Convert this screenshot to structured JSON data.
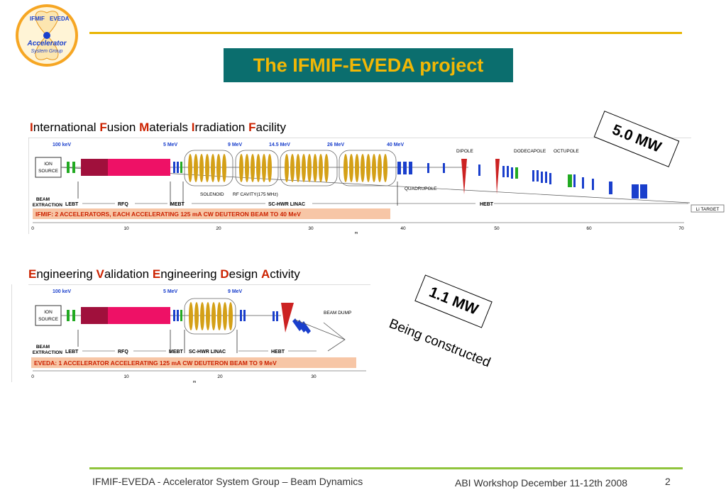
{
  "logo": {
    "left_text": "IFMIF",
    "right_text": "EVEDA",
    "main_text": "Accelerator",
    "sub_text": "System Group"
  },
  "title": "The IFMIF-EVEDA project",
  "ifmif": {
    "heading": [
      {
        "initial": "I",
        "rest": "nternational "
      },
      {
        "initial": "F",
        "rest": "usion "
      },
      {
        "initial": "M",
        "rest": "aterials "
      },
      {
        "initial": "I",
        "rest": "rradiation "
      },
      {
        "initial": "F",
        "rest": "acility"
      }
    ],
    "power": "5.0 MW",
    "energies": [
      "100 keV",
      "5 MeV",
      "9 MeV",
      "14.5 MeV",
      "26 MeV",
      "40 MeV"
    ],
    "source_line1": "ION",
    "source_line2": "SOURCE",
    "magnet_labels": [
      "DIPOLE",
      "DODECAPOLE",
      "OCTUPOLE",
      "QUADRUPOLE"
    ],
    "cavity_labels": [
      "SOLENOID",
      "RF CAVITY(175 MHz)"
    ],
    "target": "Li TARGET",
    "beam_extraction_1": "BEAM",
    "beam_extraction_2": "EXTRACTION",
    "sections": [
      "LEBT",
      "RFQ",
      "MEBT",
      "SC-HWR LINAC",
      "HEBT"
    ],
    "caption": "IFMIF: 2 ACCELERATORS, EACH ACCELERATING 125 mA CW DEUTERON BEAM TO 40 MeV",
    "axis_ticks": [
      "0",
      "10",
      "20",
      "30",
      "40",
      "50",
      "60",
      "70"
    ],
    "axis_unit": "m"
  },
  "eveda": {
    "heading": [
      {
        "initial": "E",
        "rest": "ngineering "
      },
      {
        "initial": "V",
        "rest": "alidation "
      },
      {
        "initial": "E",
        "rest": "ngineering "
      },
      {
        "initial": "D",
        "rest": "esign "
      },
      {
        "initial": "A",
        "rest": "ctivity"
      }
    ],
    "power": "1.1 MW",
    "status": "Being constructed",
    "energies": [
      "100 keV",
      "5 MeV",
      "9 MeV"
    ],
    "source_line1": "ION",
    "source_line2": "SOURCE",
    "beam_dump": "BEAM DUMP",
    "beam_extraction_1": "BEAM",
    "beam_extraction_2": "EXTRACTION",
    "sections": [
      "LEBT",
      "RFQ",
      "MEBT",
      "SC-HWR LINAC",
      "HEBT"
    ],
    "caption": "EVEDA: 1 ACCELERATOR ACCELERATING 125 mA CW DEUTERON BEAM TO 9 MeV",
    "axis_ticks": [
      "0",
      "10",
      "20",
      "30"
    ],
    "axis_unit": "m"
  },
  "footer": {
    "left": "IFMIF-EVEDA - Accelerator System Group – Beam Dynamics",
    "right": "ABI Workshop December 11-12th 2008",
    "page": "2"
  },
  "colors": {
    "title_bg": "#0b6e6e",
    "title_text": "#f2b705",
    "top_line": "#e8b400",
    "bottom_line": "#8fc43c",
    "initials": "#cc2200",
    "rfq": "#ee1166",
    "cavity": "#d4a017",
    "quad": "#1a3fcc",
    "focusing": "#22aa22"
  }
}
